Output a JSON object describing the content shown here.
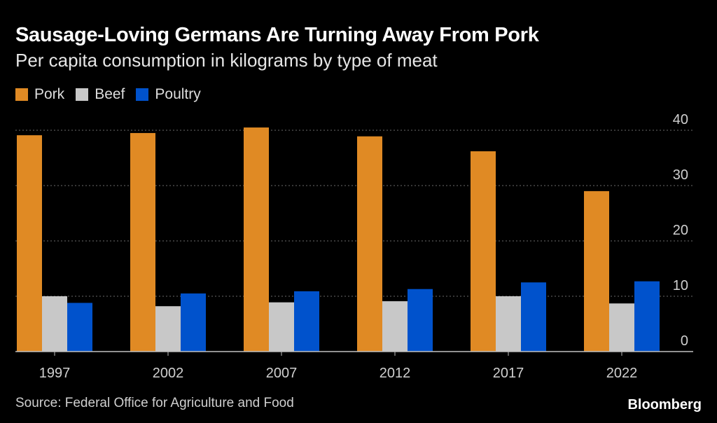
{
  "colors": {
    "pork": "#E08A24",
    "beef": "#C8C8C8",
    "poultry": "#0052CC",
    "grid": "#6b6b6b",
    "axis": "#bfbfbf",
    "tick_text": "#cfcfcf"
  },
  "chart_data": {
    "type": "bar",
    "title": "Sausage-Loving Germans Are Turning Away From Pork",
    "subtitle": "Per capita consumption in kilograms by type of meat",
    "categories": [
      "1997",
      "2002",
      "2007",
      "2012",
      "2017",
      "2022"
    ],
    "series": [
      {
        "name": "Pork",
        "values": [
          39.1,
          39.5,
          40.5,
          38.9,
          36.2,
          29.0
        ]
      },
      {
        "name": "Beef",
        "values": [
          10.0,
          8.2,
          8.9,
          9.1,
          10.0,
          8.7
        ]
      },
      {
        "name": "Poultry",
        "values": [
          8.8,
          10.5,
          10.9,
          11.3,
          12.5,
          12.7
        ]
      }
    ],
    "ylim": [
      0,
      40
    ],
    "yticks": [
      "0",
      "10",
      "20",
      "30",
      "40"
    ],
    "xlabel": "",
    "ylabel": "",
    "legend": "top-left",
    "grid": true
  },
  "source": "Source: Federal Office for Agriculture and Food",
  "brand": "Bloomberg"
}
